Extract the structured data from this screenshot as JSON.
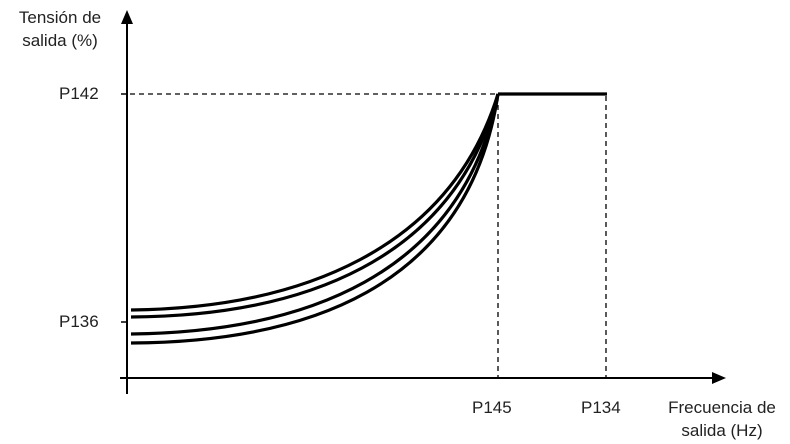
{
  "diagram": {
    "y_axis_label": "Tensión de salida (%)",
    "x_axis_label": "Frecuencia de salida (Hz)",
    "y_ticks": {
      "top": "P142",
      "bottom": "P136"
    },
    "x_ticks": {
      "first": "P145",
      "second": "P134"
    },
    "curve_count": 4,
    "line_color": "#000000",
    "text_color": "#222222"
  }
}
